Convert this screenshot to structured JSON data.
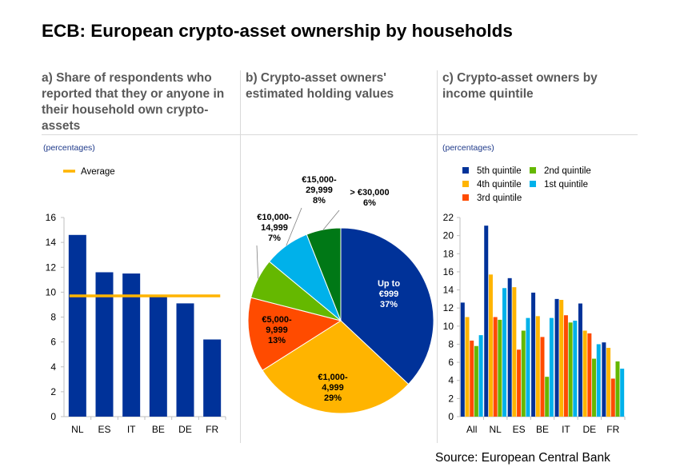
{
  "title": "ECB: European crypto-asset ownership by households",
  "source": "Source: European Central Bank",
  "colors": {
    "dark_blue": "#003299",
    "yellow": "#ffb400",
    "orange": "#ff4b00",
    "green": "#65b800",
    "light_blue": "#00b1ea",
    "dark_green": "#007816",
    "average_line": "#ffb400"
  },
  "panels": {
    "a": {
      "title": "a) Share of respondents who reported that they or anyone in their household own crypto-assets",
      "unit": "(percentages)"
    },
    "b": {
      "title": "b) Crypto-asset owners' estimated holding values"
    },
    "c": {
      "title": "c) Crypto-asset owners by income quintile",
      "unit": "(percentages)"
    }
  },
  "chart_data": [
    {
      "type": "bar",
      "categories": [
        "NL",
        "ES",
        "IT",
        "BE",
        "DE",
        "FR"
      ],
      "series": [
        {
          "values": [
            14.6,
            11.6,
            11.5,
            9.7,
            9.1,
            6.2
          ]
        }
      ],
      "reference_line": {
        "name": "Average",
        "value": 9.7
      },
      "ylim": [
        0,
        16
      ],
      "yticks": [
        0,
        2,
        4,
        6,
        8,
        10,
        12,
        14,
        16
      ],
      "legend": "top-left"
    },
    {
      "type": "pie",
      "slices": [
        {
          "label_lines": [
            "Up to",
            "€999",
            "37%"
          ],
          "value": 37
        },
        {
          "label_lines": [
            "€1,000-",
            "4,999",
            "29%"
          ],
          "value": 29
        },
        {
          "label_lines": [
            "€5,000-",
            "9,999",
            "13%"
          ],
          "value": 13
        },
        {
          "label_lines": [
            "€10,000-",
            "14,999",
            "7%"
          ],
          "value": 7
        },
        {
          "label_lines": [
            "€15,000-",
            "29,999",
            "8%"
          ],
          "value": 8
        },
        {
          "label_lines": [
            "> €30,000",
            "6%"
          ],
          "value": 6
        }
      ]
    },
    {
      "type": "bar",
      "categories": [
        "All",
        "NL",
        "ES",
        "BE",
        "IT",
        "DE",
        "FR"
      ],
      "series": [
        {
          "name": "5th quintile",
          "values": [
            12.6,
            21.1,
            15.3,
            13.7,
            13.0,
            12.5,
            8.2
          ]
        },
        {
          "name": "4th quintile",
          "values": [
            11.0,
            15.7,
            14.3,
            11.1,
            12.9,
            9.5,
            7.6
          ]
        },
        {
          "name": "3rd quintile",
          "values": [
            8.4,
            11.0,
            7.4,
            8.8,
            11.2,
            9.2,
            4.2
          ]
        },
        {
          "name": "2nd quintile",
          "values": [
            7.8,
            10.7,
            9.5,
            4.4,
            10.4,
            6.4,
            6.1
          ]
        },
        {
          "name": "1st quintile",
          "values": [
            9.0,
            14.2,
            10.9,
            10.9,
            10.6,
            8.0,
            5.3
          ]
        }
      ],
      "ylim": [
        0,
        22
      ],
      "yticks": [
        0,
        2,
        4,
        6,
        8,
        10,
        12,
        14,
        16,
        18,
        20,
        22
      ],
      "legend": "top"
    }
  ]
}
